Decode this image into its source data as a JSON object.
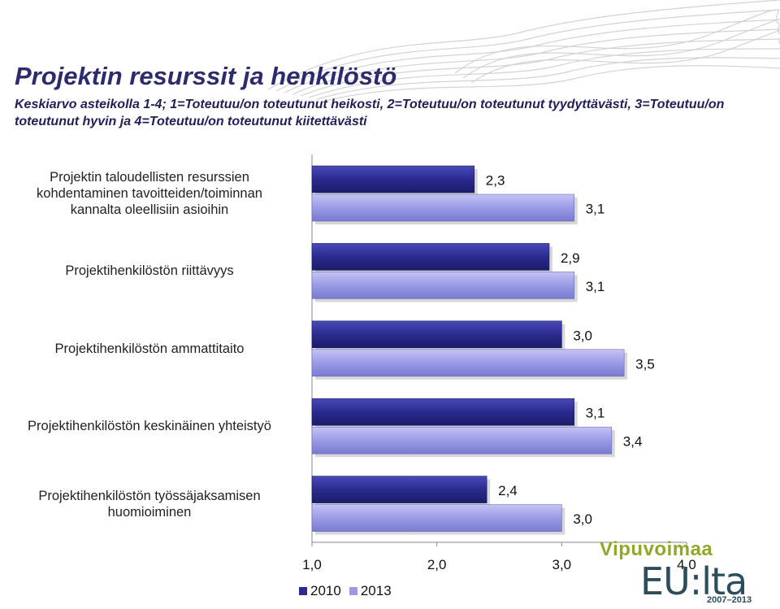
{
  "header": {
    "title": "Projektin resurssit ja henkilöstö",
    "subtitle": "Keskiarvo asteikolla 1-4; 1=Toteutuu/on toteutunut heikosti, 2=Toteutuu/on toteutunut tyydyttävästi, 3=Toteutuu/on toteutunut hyvin ja 4=Toteutuu/on toteutunut kiitettävästi"
  },
  "chart_data": {
    "type": "bar",
    "orientation": "horizontal",
    "categories": [
      "Projektin taloudellisten resurssien kohdentaminen tavoitteiden/toiminnan kannalta oleellisiin asioihin",
      "Projektihenkilöstön riittävyys",
      "Projektihenkilöstön ammattitaito",
      "Projektihenkilöstön keskinäinen yhteistyö",
      "Projektihenkilöstön työssäjaksamisen huomioiminen"
    ],
    "category_display": [
      "Projektin taloudellisten resurssien\nkohdentaminen tavoitteiden/toiminnan\nkannalta oleellisiin asioihin",
      "Projektihenkilöstön riittävyys",
      "Projektihenkilöstön ammattitaito",
      "Projektihenkilöstön keskinäinen yhteistyö",
      "Projektihenkilöstön työssäjaksamisen\nhuomioiminen"
    ],
    "series": [
      {
        "name": "2010",
        "values": [
          2.3,
          2.9,
          3.0,
          3.1,
          2.4
        ],
        "labels": [
          "2,3",
          "2,9",
          "3,0",
          "3,1",
          "2,4"
        ],
        "color": "#2a2a8f"
      },
      {
        "name": "2013",
        "values": [
          3.1,
          3.1,
          3.5,
          3.4,
          3.0
        ],
        "labels": [
          "3,1",
          "3,1",
          "3,5",
          "3,4",
          "3,0"
        ],
        "color": "#9a9ae6"
      }
    ],
    "xlim": [
      1.0,
      4.0
    ],
    "xticks": [
      "1,0",
      "2,0",
      "3,0",
      "4,0"
    ],
    "legend_position": "bottom-left",
    "grid": false
  },
  "logo": {
    "line1": "Vipuvoimaa",
    "line2": "EU:lta",
    "line3": "2007–2013"
  }
}
